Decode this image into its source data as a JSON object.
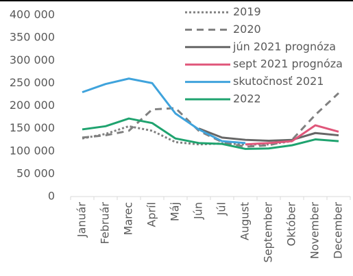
{
  "chart_data": {
    "type": "line",
    "categories": [
      "Január",
      "Február",
      "Marec",
      "Apríl",
      "Máj",
      "Jún",
      "Júl",
      "August",
      "September",
      "Október",
      "November",
      "December"
    ],
    "series": [
      {
        "name": "2019",
        "color": "#808080",
        "dash": "dotted",
        "values": [
          128000,
          138000,
          155000,
          145000,
          120000,
          115000,
          117000,
          115000,
          115000,
          122000,
          null,
          null
        ]
      },
      {
        "name": "2020",
        "color": "#808080",
        "dash": "dashed",
        "values": [
          130000,
          135000,
          145000,
          192000,
          195000,
          145000,
          120000,
          110000,
          113000,
          125000,
          180000,
          228000
        ]
      },
      {
        "name": "jún 2021 prognóza",
        "color": "#666666",
        "dash": "solid",
        "values": [
          null,
          null,
          null,
          null,
          null,
          150000,
          130000,
          125000,
          123000,
          125000,
          140000,
          135000
        ]
      },
      {
        "name": "sept 2021 prognóza",
        "color": "#e0567a",
        "dash": "solid",
        "values": [
          null,
          null,
          null,
          null,
          null,
          null,
          null,
          115000,
          118000,
          122000,
          157000,
          143000
        ]
      },
      {
        "name": "skutočnosť 2021",
        "color": "#3fa3dc",
        "dash": "solid",
        "values": [
          230000,
          248000,
          260000,
          250000,
          183000,
          148000,
          122000,
          118000,
          null,
          null,
          null,
          null
        ]
      },
      {
        "name": "2022",
        "color": "#1fa36f",
        "dash": "solid",
        "values": [
          148000,
          155000,
          172000,
          162000,
          128000,
          118000,
          116000,
          105000,
          106000,
          113000,
          126000,
          122000
        ]
      }
    ],
    "ylim": [
      0,
      400000
    ],
    "yticks": [
      {
        "value": 0,
        "label": "0"
      },
      {
        "value": 50000,
        "label": "50 000"
      },
      {
        "value": 100000,
        "label": "100 000"
      },
      {
        "value": 150000,
        "label": "150 000"
      },
      {
        "value": 200000,
        "label": "200 000"
      },
      {
        "value": 250000,
        "label": "250 000"
      },
      {
        "value": 300000,
        "label": "300 000"
      },
      {
        "value": 350000,
        "label": "350 000"
      },
      {
        "value": 400000,
        "label": "400 000"
      }
    ],
    "grid": false,
    "legend": "top-right"
  }
}
